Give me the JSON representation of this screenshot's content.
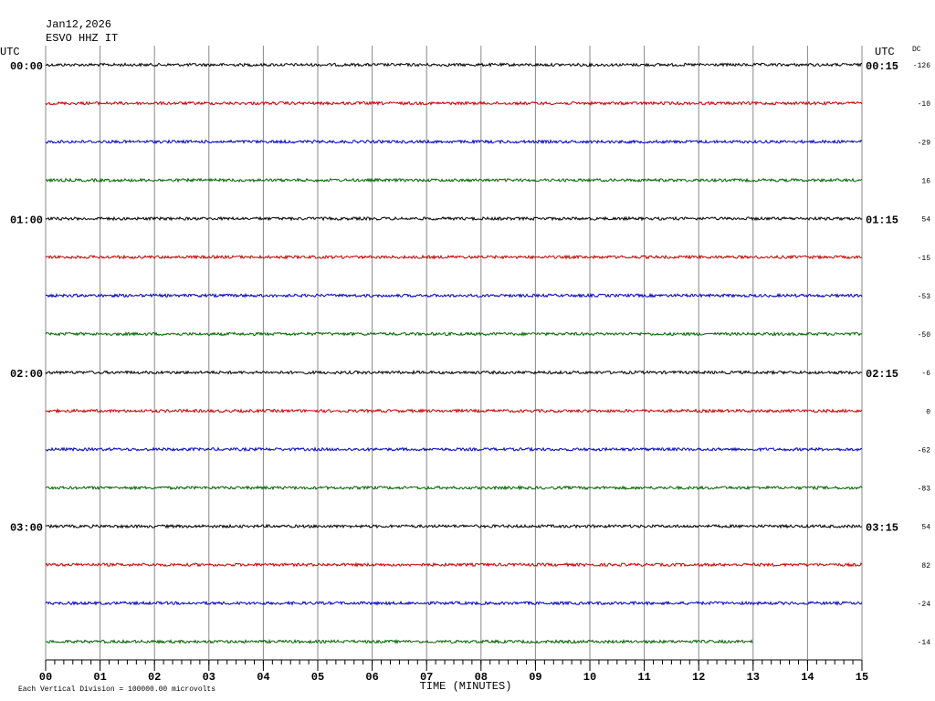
{
  "chart_data": {
    "type": "helicorder",
    "title": "Jan12,2026",
    "subtitle": "ESVO HHZ IT",
    "left_axis_label": "UTC",
    "right_axis_label": "UTC",
    "dc_label": "DC",
    "xlabel": "TIME (MINUTES)",
    "footnote": "Each Vertical Division = 100000.00 microvolts",
    "xlim": [
      0,
      15
    ],
    "xticks": [
      {
        "value": 0,
        "label": "00"
      },
      {
        "value": 1,
        "label": "01"
      },
      {
        "value": 2,
        "label": "02"
      },
      {
        "value": 3,
        "label": "03"
      },
      {
        "value": 4,
        "label": "04"
      },
      {
        "value": 5,
        "label": "05"
      },
      {
        "value": 6,
        "label": "06"
      },
      {
        "value": 7,
        "label": "07"
      },
      {
        "value": 8,
        "label": "08"
      },
      {
        "value": 9,
        "label": "09"
      },
      {
        "value": 10,
        "label": "10"
      },
      {
        "value": 11,
        "label": "11"
      },
      {
        "value": 12,
        "label": "12"
      },
      {
        "value": 13,
        "label": "13"
      },
      {
        "value": 14,
        "label": "14"
      },
      {
        "value": 15,
        "label": "15"
      }
    ],
    "grid": true,
    "rows": [
      {
        "left": "00:00",
        "right": "00:15",
        "dc": -126,
        "color": "#000000",
        "end": 15
      },
      {
        "dc": -10,
        "color": "#c80000",
        "end": 15
      },
      {
        "dc": -29,
        "color": "#0000c8",
        "end": 15
      },
      {
        "dc": 16,
        "color": "#006400",
        "end": 15
      },
      {
        "left": "01:00",
        "right": "01:15",
        "dc": 54,
        "color": "#000000",
        "end": 15
      },
      {
        "dc": -15,
        "color": "#c80000",
        "end": 15
      },
      {
        "dc": -53,
        "color": "#0000c8",
        "end": 15
      },
      {
        "dc": -50,
        "color": "#006400",
        "end": 15
      },
      {
        "left": "02:00",
        "right": "02:15",
        "dc": -6,
        "color": "#000000",
        "end": 15
      },
      {
        "dc": 0,
        "color": "#c80000",
        "end": 15
      },
      {
        "dc": -62,
        "color": "#0000c8",
        "end": 15
      },
      {
        "dc": -83,
        "color": "#006400",
        "end": 15
      },
      {
        "left": "03:00",
        "right": "03:15",
        "dc": 54,
        "color": "#000000",
        "end": 15
      },
      {
        "dc": 82,
        "color": "#c80000",
        "end": 15
      },
      {
        "dc": -24,
        "color": "#0000c8",
        "end": 15
      },
      {
        "dc": -14,
        "color": "#006400",
        "end": 13
      }
    ]
  }
}
